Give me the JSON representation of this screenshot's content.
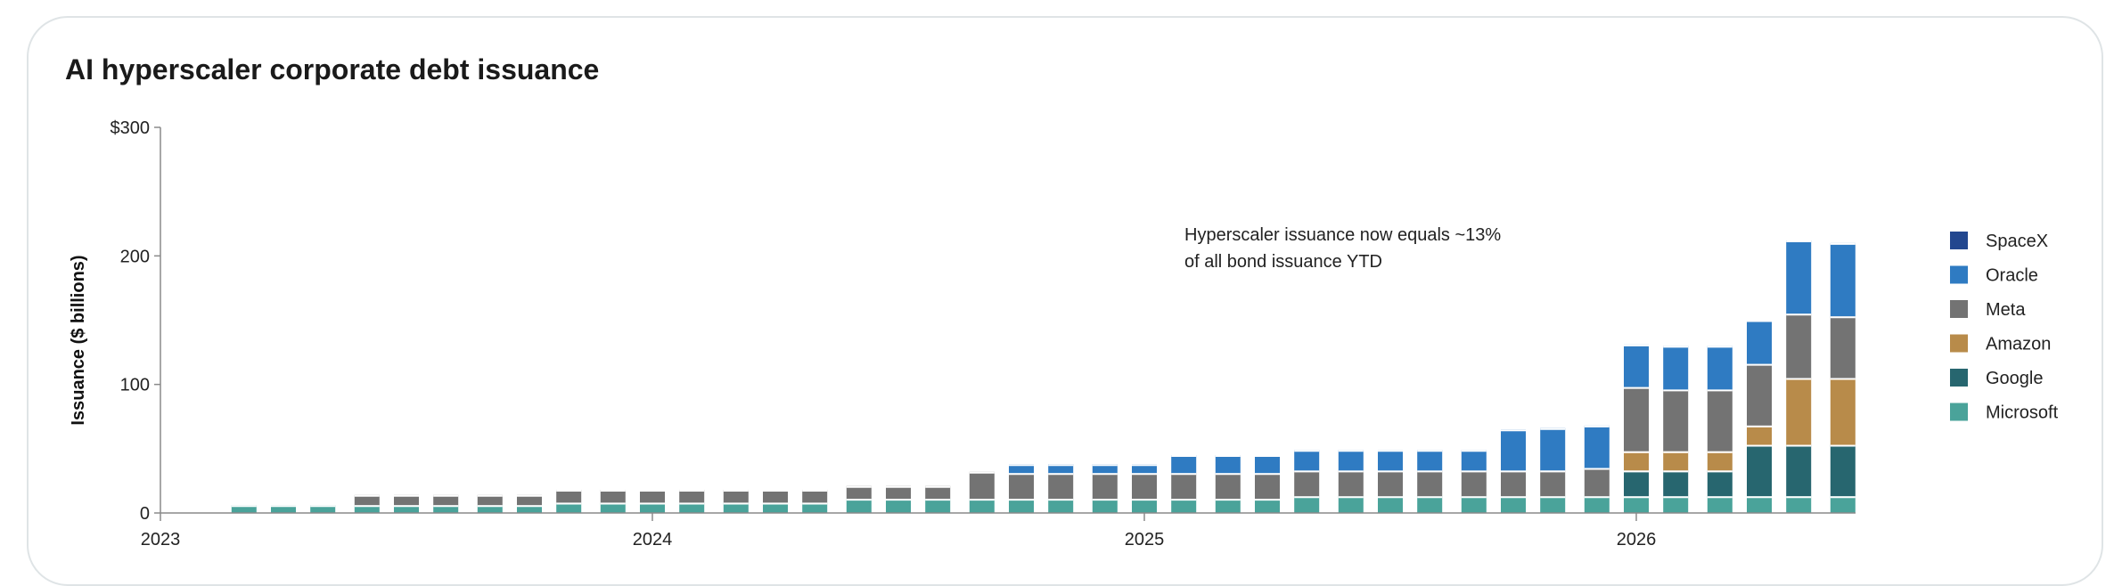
{
  "colors": {
    "Microsoft": "#4aa39a",
    "Google": "#27666f",
    "Amazon": "#b88b4a",
    "Meta": "#737373",
    "Oracle": "#2f7bc2",
    "SpaceX": "#22478f"
  },
  "chart_data": {
    "type": "bar",
    "stacked": true,
    "title": "AI hyperscaler corporate debt issuance",
    "xlabel": "",
    "ylabel": "Issuance ($ billions)",
    "ylim": [
      0,
      300
    ],
    "yticks": [
      "$300",
      "200",
      "100",
      "0"
    ],
    "ytick_values": [
      300,
      200,
      100,
      0
    ],
    "xticks": [
      "2023",
      "2024",
      "2025",
      "2026"
    ],
    "xtick_positions": [
      2023.0,
      2024.0,
      2025.0,
      2026.0
    ],
    "grid": false,
    "legend": "right",
    "annotation": [
      "Hyperscaler issuance now equals ~13%",
      "of all bond issuance YTD"
    ],
    "x": [
      2023.17,
      2023.25,
      2023.33,
      2023.42,
      2023.5,
      2023.58,
      2023.67,
      2023.75,
      2023.83,
      2023.92,
      2024.0,
      2024.08,
      2024.17,
      2024.25,
      2024.33,
      2024.42,
      2024.5,
      2024.58,
      2024.67,
      2024.75,
      2024.83,
      2024.92,
      2025.0,
      2025.08,
      2025.17,
      2025.25,
      2025.33,
      2025.42,
      2025.5,
      2025.58,
      2025.67,
      2025.75,
      2025.83,
      2025.92,
      2026.0,
      2026.08,
      2026.17,
      2026.25,
      2026.33,
      2026.42
    ],
    "series": [
      {
        "name": "Microsoft",
        "values": [
          6,
          6,
          6,
          6,
          6,
          6,
          6,
          6,
          8,
          8,
          8,
          8,
          8,
          8,
          8,
          11,
          11,
          11,
          11,
          11,
          11,
          11,
          11,
          11,
          11,
          11,
          13,
          13,
          13,
          13,
          13,
          13,
          13,
          13,
          13,
          13,
          13,
          13,
          13,
          13
        ]
      },
      {
        "name": "Google",
        "values": [
          0,
          0,
          0,
          0,
          0,
          0,
          0,
          0,
          0,
          0,
          0,
          0,
          0,
          0,
          0,
          0,
          0,
          0,
          0,
          0,
          0,
          0,
          0,
          0,
          0,
          0,
          0,
          0,
          0,
          0,
          0,
          0,
          0,
          0,
          20,
          20,
          20,
          40,
          40,
          40
        ]
      },
      {
        "name": "Amazon",
        "values": [
          0,
          0,
          0,
          0,
          0,
          0,
          0,
          0,
          0,
          0,
          0,
          0,
          0,
          0,
          0,
          0,
          0,
          0,
          0,
          0,
          0,
          0,
          0,
          0,
          0,
          0,
          0,
          0,
          0,
          0,
          0,
          0,
          0,
          0,
          15,
          15,
          15,
          15,
          52,
          52
        ]
      },
      {
        "name": "Meta",
        "values": [
          0,
          0,
          0,
          8,
          8,
          8,
          8,
          8,
          10,
          10,
          10,
          10,
          10,
          10,
          10,
          10,
          10,
          10,
          21,
          20,
          20,
          20,
          20,
          20,
          20,
          20,
          20,
          20,
          20,
          20,
          20,
          20,
          20,
          22,
          50,
          48,
          48,
          48,
          50,
          48
        ]
      },
      {
        "name": "Oracle",
        "values": [
          0,
          0,
          0,
          0,
          0,
          0,
          0,
          0,
          0,
          0,
          0,
          0,
          0,
          0,
          0,
          0,
          0,
          0,
          0,
          7,
          7,
          7,
          7,
          14,
          14,
          14,
          16,
          16,
          16,
          16,
          16,
          32,
          33,
          33,
          33,
          34,
          34,
          34,
          57,
          57
        ]
      },
      {
        "name": "SpaceX",
        "values": [
          0,
          0,
          0,
          0,
          0,
          0,
          0,
          0,
          0,
          0,
          0,
          0,
          0,
          0,
          0,
          0,
          0,
          0,
          0,
          0,
          0,
          0,
          0,
          0,
          0,
          0,
          0,
          0,
          0,
          0,
          0,
          0,
          0,
          0,
          0,
          0,
          0,
          0,
          0,
          0
        ]
      }
    ],
    "legend_order": [
      "SpaceX",
      "Oracle",
      "Meta",
      "Amazon",
      "Google",
      "Microsoft"
    ]
  }
}
